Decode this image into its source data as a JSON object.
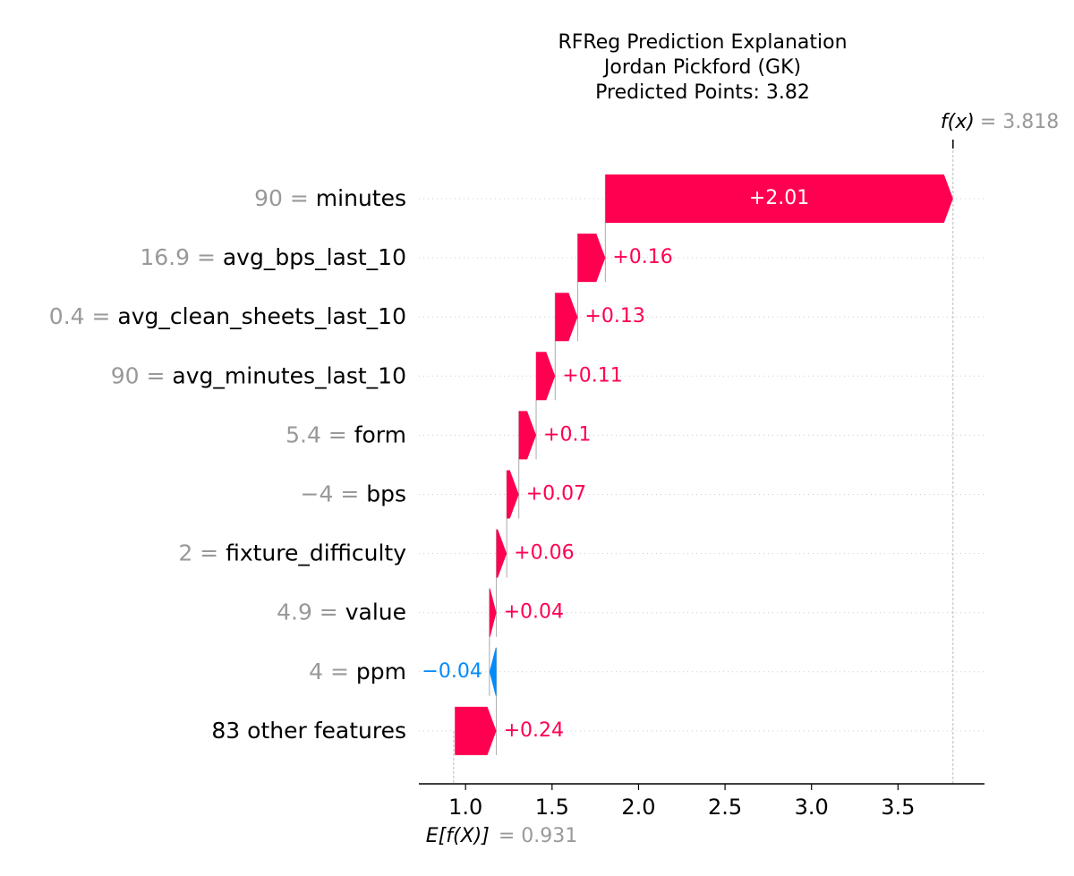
{
  "chart_data": {
    "type": "waterfall",
    "title_lines": [
      "RFReg Prediction Explanation",
      "Jordan Pickford (GK)",
      "Predicted Points: 3.82"
    ],
    "base_value": 0.931,
    "base_label_text": "E[f(X)]",
    "base_value_text": "= 0.931",
    "final_value": 3.818,
    "final_label_text": "f(x)",
    "final_value_text": "= 3.818",
    "xlim": [
      0.73,
      4.0
    ],
    "x_ticks": [
      1.0,
      1.5,
      2.0,
      2.5,
      3.0,
      3.5
    ],
    "x_tick_labels": [
      "1.0",
      "1.5",
      "2.0",
      "2.5",
      "3.0",
      "3.5"
    ],
    "features": [
      {
        "value_text": "90 =",
        "name": "minutes",
        "contribution": 2.01,
        "label": "+2.01"
      },
      {
        "value_text": "16.9 =",
        "name": "avg_bps_last_10",
        "contribution": 0.16,
        "label": "+0.16"
      },
      {
        "value_text": "0.4 =",
        "name": "avg_clean_sheets_last_10",
        "contribution": 0.13,
        "label": "+0.13"
      },
      {
        "value_text": "90 =",
        "name": "avg_minutes_last_10",
        "contribution": 0.11,
        "label": "+0.11"
      },
      {
        "value_text": "5.4 =",
        "name": "form",
        "contribution": 0.1,
        "label": "+0.1"
      },
      {
        "value_text": "−4 =",
        "name": "bps",
        "contribution": 0.07,
        "label": "+0.07"
      },
      {
        "value_text": "2 =",
        "name": "fixture_difficulty",
        "contribution": 0.06,
        "label": "+0.06"
      },
      {
        "value_text": "4.9 =",
        "name": "value",
        "contribution": 0.04,
        "label": "+0.04"
      },
      {
        "value_text": "4 =",
        "name": "ppm",
        "contribution": -0.04,
        "label": "−0.04"
      },
      {
        "value_text": "",
        "name": "83 other features",
        "contribution": 0.24,
        "label": "+0.24"
      }
    ],
    "colors": {
      "positive": "#ff0051",
      "negative": "#008bfb",
      "muted_text": "#999999",
      "text": "#000000",
      "grid": "#cccccc"
    }
  }
}
